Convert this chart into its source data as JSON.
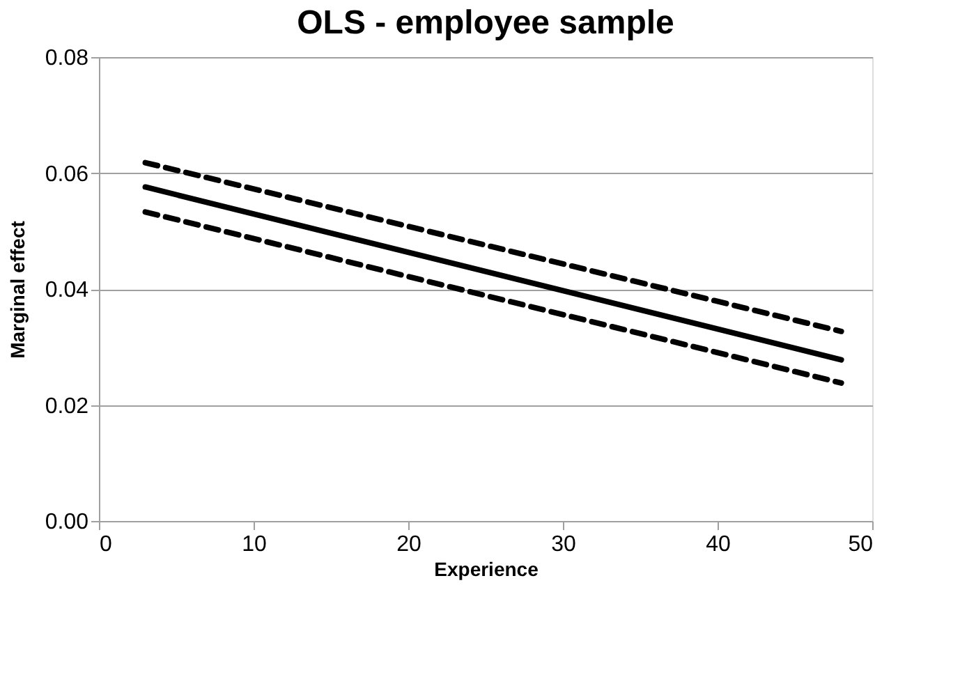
{
  "chart_data": {
    "type": "line",
    "title": "OLS - employee sample",
    "xlabel": "Experience",
    "ylabel": "Marginal effect",
    "x": [
      3,
      48
    ],
    "series": [
      {
        "color": "#000000",
        "values": [
          0.0576,
          0.0278
        ],
        "line_style": "solid"
      },
      {
        "color": "#000000",
        "values": [
          0.0618,
          0.0327
        ],
        "line_style": "dashed"
      },
      {
        "color": "#000000",
        "values": [
          0.0533,
          0.0238
        ],
        "line_style": "dashed"
      }
    ],
    "xlim": [
      0,
      50
    ],
    "xticks": [
      0,
      10,
      20,
      30,
      40,
      50
    ],
    "ylim": [
      0,
      0.08
    ],
    "yticks": [
      {
        "value": 0,
        "label": "0.00"
      },
      {
        "value": 0.02,
        "label": "0.02"
      },
      {
        "value": 0.04,
        "label": "0.04"
      },
      {
        "value": 0.06,
        "label": "0.06"
      },
      {
        "value": 0.08,
        "label": "0.08"
      }
    ],
    "grid": "y",
    "marker": "none"
  }
}
